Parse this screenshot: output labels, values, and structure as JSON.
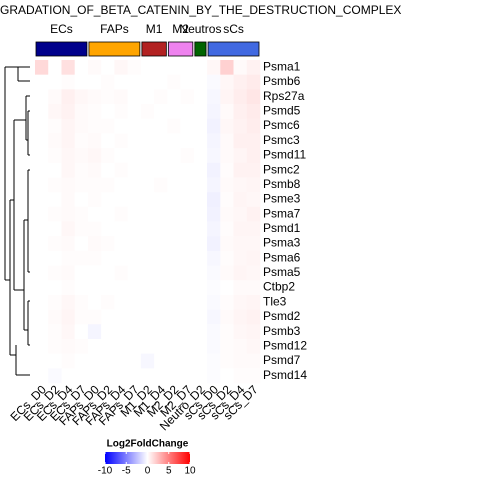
{
  "chart_data": {
    "type": "heatmap",
    "title": "GRADATION_OF_BETA_CATENIN_BY_THE_DESTRUCTION_COMPLEX",
    "rows": [
      "Psma1",
      "Psmb6",
      "Rps27a",
      "Psmd5",
      "Psmc6",
      "Psmc3",
      "Psmd11",
      "Psmc2",
      "Psmb8",
      "Psme3",
      "Psma7",
      "Psmd1",
      "Psma3",
      "Psma6",
      "Psma5",
      "Ctbp2",
      "Tle3",
      "Psmd2",
      "Psmb3",
      "Psmd12",
      "Psmd7",
      "Psmd14"
    ],
    "columns": [
      "ECs_D0",
      "ECs_D2",
      "ECs_D4",
      "ECs_D7",
      "FAPs_D0",
      "FAPs_D2",
      "FAPs_D4",
      "FAPs_D7",
      "M1_D2",
      "M1_D4",
      "M2_D2",
      "M2_D7",
      "Neutro_D2",
      "sCs_D0",
      "sCs_D2",
      "sCs_D4",
      "sCs_D7"
    ],
    "groups": [
      {
        "name": "ECs",
        "color": "#00008b"
      },
      {
        "name": "FAPs",
        "color": "#ffa500"
      },
      {
        "name": "M1",
        "color": "#b22222"
      },
      {
        "name": "M2",
        "color": "#ee82ee"
      },
      {
        "name": "Neutros",
        "color": "#006400"
      },
      {
        "name": "sCs",
        "color": "#4169e1"
      }
    ],
    "values": [
      [
        1.5,
        0,
        1.2,
        0,
        0.2,
        0,
        0.3,
        0.1,
        0,
        0,
        0,
        0,
        0,
        0.3,
        1.8,
        0.2,
        0.5
      ],
      [
        0,
        0,
        0.1,
        0,
        0,
        0.1,
        0,
        0,
        0,
        0,
        0.1,
        0,
        0,
        -0.2,
        0.3,
        0.6,
        0.8
      ],
      [
        0,
        0.2,
        0.6,
        0.3,
        0.2,
        0.1,
        0.2,
        0,
        0,
        0.1,
        0,
        0.1,
        0,
        -0.3,
        0.4,
        0.7,
        1.0
      ],
      [
        0,
        0.3,
        0.5,
        0.2,
        0.1,
        0,
        0.1,
        0,
        0.1,
        0,
        0,
        0,
        0,
        -0.4,
        0.2,
        0.6,
        0.8
      ],
      [
        0,
        0.1,
        0.4,
        0.2,
        0.1,
        0.1,
        0,
        0,
        0,
        0,
        0.1,
        0,
        0,
        -0.5,
        0.3,
        0.5,
        0.7
      ],
      [
        0,
        0.2,
        0.4,
        0.1,
        0.2,
        0,
        0.1,
        0,
        0,
        0,
        0,
        0,
        0,
        -0.4,
        0.2,
        0.6,
        0.6
      ],
      [
        0,
        0.1,
        0.3,
        0.2,
        0.3,
        0.1,
        0,
        0,
        0,
        0,
        0,
        0.1,
        0,
        -0.3,
        0.2,
        0.4,
        0.6
      ],
      [
        0,
        0,
        0.3,
        0.1,
        0.2,
        0,
        0.1,
        0,
        0,
        0,
        0,
        0,
        0,
        -0.5,
        0.1,
        0.5,
        0.5
      ],
      [
        0,
        0.1,
        0.2,
        0.1,
        0.1,
        0.1,
        0,
        0,
        0,
        0.1,
        0,
        0,
        0,
        -0.4,
        0.2,
        0.3,
        0.4
      ],
      [
        0,
        0,
        0.2,
        0,
        0.1,
        0,
        0,
        0,
        0,
        0,
        0,
        0,
        0,
        -0.6,
        0.1,
        0.4,
        0.3
      ],
      [
        0,
        0.1,
        0.2,
        0.1,
        0,
        0,
        0.1,
        0,
        0,
        0,
        0,
        0,
        0,
        -0.5,
        0.2,
        0.3,
        0.5
      ],
      [
        0,
        0,
        0.3,
        0.1,
        0.1,
        0,
        0,
        0,
        0,
        0,
        0,
        0,
        0,
        -0.4,
        0.1,
        0.4,
        0.4
      ],
      [
        0,
        0.1,
        0.2,
        0,
        0.2,
        0.1,
        0,
        0,
        0,
        0,
        0,
        0,
        0,
        -0.5,
        0.2,
        0.3,
        0.3
      ],
      [
        0,
        0,
        0.1,
        0.1,
        0.1,
        0,
        0,
        0,
        0,
        0,
        0,
        0,
        0,
        -0.3,
        0.1,
        0.3,
        0.4
      ],
      [
        0,
        0.1,
        0.2,
        0,
        0,
        0,
        0.1,
        0,
        0,
        0,
        0,
        0,
        0,
        -0.2,
        0.2,
        0.4,
        0.3
      ],
      [
        0,
        0,
        0.1,
        0,
        0,
        0,
        0,
        0,
        0,
        0,
        0,
        0,
        0,
        -0.1,
        0,
        0.2,
        0.2
      ],
      [
        0,
        0.1,
        0.3,
        0.1,
        0,
        0.1,
        0,
        0,
        0,
        0,
        0,
        0,
        0,
        -0.2,
        0.1,
        0.3,
        0.4
      ],
      [
        0,
        0.2,
        0.4,
        0.1,
        0.1,
        0,
        0,
        0,
        0,
        0,
        0,
        0,
        0,
        -0.3,
        0.2,
        0.4,
        0.5
      ],
      [
        0,
        0.1,
        0.3,
        0,
        -0.4,
        0,
        0,
        0,
        0,
        0,
        0,
        0,
        0,
        -0.2,
        0.1,
        0.3,
        0.4
      ],
      [
        0,
        0.1,
        0.2,
        0.1,
        0,
        0,
        0,
        0,
        0,
        0,
        0,
        0,
        0,
        -0.2,
        0.1,
        0.2,
        0.3
      ],
      [
        0,
        0,
        0.1,
        0,
        0,
        0,
        0,
        0,
        -0.3,
        0,
        0,
        0,
        0,
        -0.1,
        0.1,
        0.2,
        0.2
      ],
      [
        0,
        -0.2,
        0,
        0,
        0,
        0,
        0,
        0,
        0,
        0,
        0,
        0,
        0,
        -0.1,
        0,
        0.1,
        0.1
      ]
    ],
    "legend_title": "Log2FoldChange",
    "colors": [
      "#0000ff",
      "#ffffff",
      "#ff0000"
    ],
    "color_breaks": [
      -10,
      0,
      10
    ],
    "legend_ticks": [
      -10,
      -5,
      0,
      5,
      10
    ]
  }
}
